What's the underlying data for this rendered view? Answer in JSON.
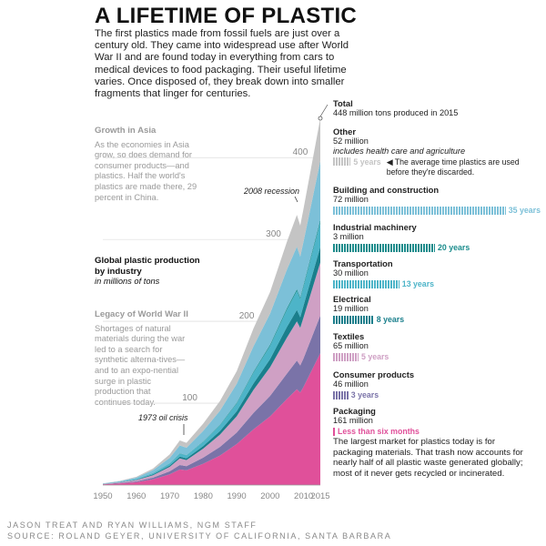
{
  "title": "A LIFETIME OF PLASTIC",
  "intro": "The first plastics made from fossil fuels are just over a century old. They came into widespread use after World War II and are found today in everything from cars to medical devices to food packaging. Their useful lifetime varies. Once disposed of, they break down into smaller fragments that linger for centuries.",
  "asia": {
    "heading": "Growth in Asia",
    "text": "As the economies in Asia grow, so does demand for consumer products—and plastics. Half the world's plastics are made there, 29 percent in China."
  },
  "chart_label": {
    "heading": "Global plastic production by industry",
    "sub": "in millions of tons"
  },
  "ww2": {
    "heading": "Legacy of World War II",
    "text": "Shortages of natural materials during the war led to a search for synthetic alterna-tives—and to an expo-nential surge in plastic production that continues today."
  },
  "annotations": {
    "oil": "1973 oil crisis",
    "recession": "2008 recession"
  },
  "total": {
    "name": "Total",
    "value": "448 million tons produced in 2015"
  },
  "categories": [
    {
      "name": "Other",
      "amount": "52 million",
      "extra": "includes health care and agriculture",
      "years": "5 years",
      "note": "The average time plastics are used before they're discarded.",
      "color": "#c4c4c4",
      "bar_years": 5
    },
    {
      "name": "Building and construction",
      "amount": "72 million",
      "years": "35 years",
      "color": "#7cc0d8",
      "bar_years": 35
    },
    {
      "name": "Industrial machinery",
      "amount": "3 million",
      "years": "20 years",
      "color": "#1a8c8c",
      "bar_years": 20
    },
    {
      "name": "Transportation",
      "amount": "30 million",
      "years": "13 years",
      "color": "#4db4c8",
      "bar_years": 13
    },
    {
      "name": "Electrical",
      "amount": "19 million",
      "years": "8 years",
      "color": "#1a7f8c",
      "bar_years": 8
    },
    {
      "name": "Textiles",
      "amount": "65 million",
      "years": "5 years",
      "color": "#cfa0c4",
      "bar_years": 5
    },
    {
      "name": "Consumer products",
      "amount": "46 million",
      "years": "3 years",
      "color": "#7a73a8",
      "bar_years": 3
    },
    {
      "name": "Packaging",
      "amount": "161 million",
      "years": "Less than six months",
      "color": "#e0509a",
      "bar_years": 0.2
    }
  ],
  "packaging_text": "The largest market for plastics today is for packaging materials. That trash now accounts for nearly half of all plastic waste generated globally; most of it never gets recycled or incinerated.",
  "credits": {
    "line1": "JASON TREAT AND RYAN WILLIAMS, NGM STAFF",
    "line2": "SOURCE: ROLAND GEYER, UNIVERSITY OF CALIFORNIA, SANTA BARBARA"
  },
  "chart_data": {
    "type": "area",
    "stacked": true,
    "x": [
      1950,
      1955,
      1960,
      1965,
      1970,
      1973,
      1975,
      1980,
      1985,
      1990,
      1995,
      2000,
      2005,
      2008,
      2009,
      2010,
      2015
    ],
    "x_ticks": [
      1950,
      1960,
      1970,
      1980,
      1990,
      2000,
      2010,
      2015
    ],
    "y_ticks": [
      100,
      200,
      300,
      400
    ],
    "ylim": [
      0,
      450
    ],
    "series": [
      {
        "name": "Packaging",
        "color": "#e0509a",
        "values": [
          0.8,
          2,
          3.5,
          7,
          13,
          19,
          18,
          26,
          36,
          50,
          68,
          84,
          105,
          117,
          113,
          120,
          161
        ]
      },
      {
        "name": "Consumer products",
        "color": "#7a73a8",
        "values": [
          0.3,
          0.6,
          1,
          2,
          3.8,
          5.5,
          5,
          7.5,
          10.5,
          14,
          20,
          25,
          31,
          35,
          33,
          35,
          46
        ]
      },
      {
        "name": "Textiles",
        "color": "#cfa0c4",
        "values": [
          0.3,
          0.7,
          1.5,
          3,
          5.5,
          8,
          7.5,
          11,
          15,
          20,
          28,
          35,
          44,
          48,
          46,
          50,
          65
        ]
      },
      {
        "name": "Electrical",
        "color": "#1a7f8c",
        "values": [
          0.1,
          0.3,
          0.5,
          1,
          1.6,
          2.3,
          2.2,
          3.2,
          4.5,
          6,
          8,
          10,
          13,
          14,
          13,
          14.5,
          19
        ]
      },
      {
        "name": "Transportation",
        "color": "#4db4c8",
        "values": [
          0.2,
          0.4,
          0.8,
          1.5,
          2.5,
          3.6,
          3.5,
          5,
          7,
          9.5,
          13,
          16,
          21,
          23,
          22,
          23,
          30
        ]
      },
      {
        "name": "Industrial machinery",
        "color": "#1a8c8c",
        "values": [
          0,
          0.05,
          0.1,
          0.2,
          0.3,
          0.4,
          0.4,
          0.5,
          0.7,
          1,
          1.3,
          1.6,
          2,
          2.2,
          2.1,
          2.3,
          3
        ]
      },
      {
        "name": "Building and construction",
        "color": "#7cc0d8",
        "values": [
          0.2,
          0.6,
          1.6,
          3.5,
          6.5,
          9.5,
          9,
          13,
          17,
          23,
          31,
          38,
          47,
          52,
          50,
          53,
          72
        ]
      },
      {
        "name": "Other",
        "color": "#c4c4c4",
        "values": [
          0.1,
          0.4,
          1,
          2,
          4.3,
          6.2,
          5.9,
          8.8,
          11.8,
          15.5,
          21.7,
          26.4,
          34,
          38.8,
          37.9,
          40.2,
          52
        ]
      }
    ]
  }
}
